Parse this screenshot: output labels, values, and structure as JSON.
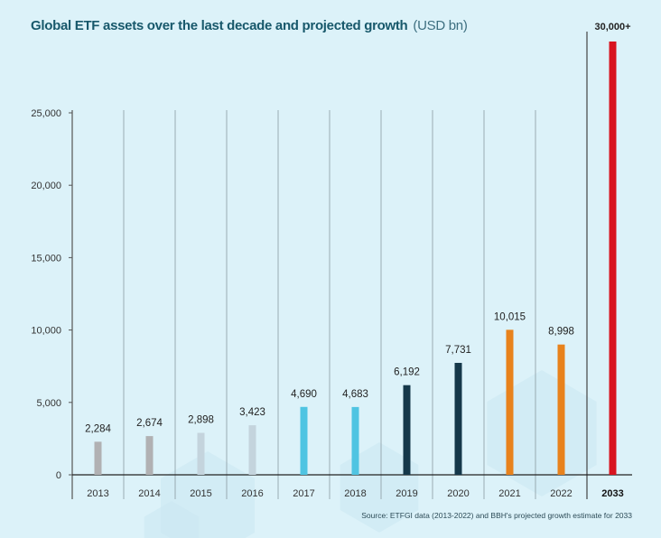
{
  "chart_data": {
    "type": "bar",
    "title": "Global ETF assets over the last decade and projected growth",
    "unit": "(USD bn)",
    "categories": [
      "2013",
      "2014",
      "2015",
      "2016",
      "2017",
      "2018",
      "2019",
      "2020",
      "2021",
      "2022",
      "2033"
    ],
    "values": [
      2284,
      2674,
      2898,
      3423,
      4690,
      4683,
      6192,
      7731,
      10015,
      8998,
      30000
    ],
    "data_labels": [
      "2,284",
      "2,674",
      "2,898",
      "3,423",
      "4,690",
      "4,683",
      "6,192",
      "7,731",
      "10,015",
      "8,998",
      "30,000+"
    ],
    "colors": [
      "#b1b1b3",
      "#b1b1b3",
      "#c4d4dd",
      "#c4d4dd",
      "#4fc4e2",
      "#4fc4e2",
      "#15384a",
      "#15384a",
      "#e8821c",
      "#e8821c",
      "#d8141f"
    ],
    "yticks": [
      0,
      5000,
      10000,
      15000,
      20000,
      25000
    ],
    "ytick_labels": [
      "0",
      "5,000",
      "10,000",
      "15,000",
      "20,000",
      "25,000"
    ],
    "ylim": [
      0,
      25000
    ],
    "xlabel": "",
    "ylabel": "",
    "grid": "vertical separators",
    "highlight_category": "2033",
    "source": "Source: ETFGI data (2013-2022) and BBH's projected growth estimate for 2033"
  }
}
